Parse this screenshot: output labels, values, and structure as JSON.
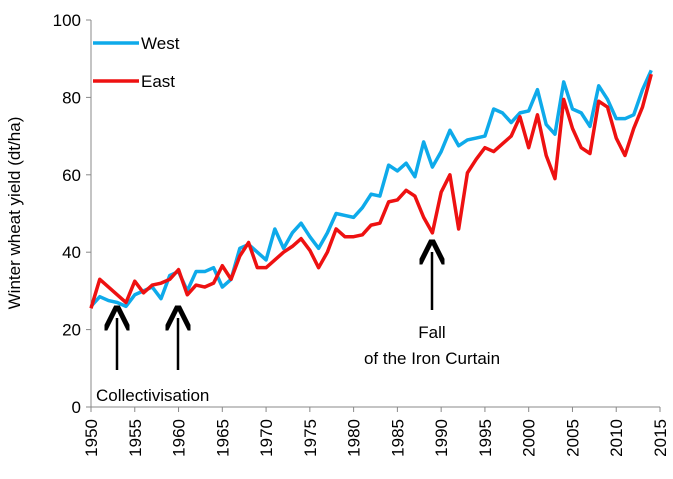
{
  "chart_data": {
    "type": "line",
    "y_label": "Winter wheat yield (dt/ha)",
    "annotations": [
      "Collectivisation",
      "Fall",
      "of the Iron Curtain"
    ],
    "x": [
      1950,
      1951,
      1952,
      1953,
      1954,
      1955,
      1956,
      1957,
      1958,
      1959,
      1960,
      1961,
      1962,
      1963,
      1964,
      1965,
      1966,
      1967,
      1968,
      1969,
      1970,
      1971,
      1972,
      1973,
      1974,
      1975,
      1976,
      1977,
      1978,
      1979,
      1980,
      1981,
      1982,
      1983,
      1984,
      1985,
      1986,
      1987,
      1988,
      1989,
      1990,
      1991,
      1992,
      1993,
      1994,
      1995,
      1996,
      1997,
      1998,
      1999,
      2000,
      2001,
      2002,
      2003,
      2004,
      2005,
      2006,
      2007,
      2008,
      2009,
      2010,
      2011,
      2012,
      2013,
      2014
    ],
    "series": [
      {
        "name": "West",
        "color": "#0eaaea",
        "values": [
          26,
          28.5,
          27.5,
          27,
          26,
          29,
          30,
          31,
          28,
          34,
          35,
          30,
          35,
          35,
          36,
          31,
          33,
          41,
          42,
          40,
          38,
          46,
          41,
          45,
          47.5,
          44,
          41,
          45,
          50,
          49.5,
          49,
          51.5,
          55,
          54.5,
          62.5,
          61,
          63,
          59.5,
          68.5,
          62,
          66,
          71.5,
          67.5,
          69,
          69.5,
          70,
          77,
          76,
          73.5,
          76,
          76.5,
          82,
          73,
          70.5,
          84,
          77,
          76,
          72.5,
          83,
          79.5,
          74.5,
          74.5,
          75.5,
          82,
          87
        ]
      },
      {
        "name": "East",
        "color": "#ee1111",
        "values": [
          25.5,
          33,
          31,
          29,
          27,
          32.5,
          29.5,
          31.5,
          32,
          33,
          35.5,
          29,
          31.5,
          31,
          32,
          36.5,
          33,
          39,
          42.5,
          36,
          36,
          38,
          40,
          41.5,
          43.5,
          40.5,
          36,
          40,
          46,
          44,
          44,
          44.5,
          47,
          47.5,
          53,
          53.5,
          56,
          54.5,
          49,
          45,
          55.5,
          60,
          46,
          60.5,
          64,
          67,
          66,
          68,
          70,
          75,
          67,
          75.5,
          65,
          59,
          79.5,
          72,
          67,
          65.5,
          79,
          77.5,
          69.5,
          65,
          72,
          77.5,
          86
        ]
      }
    ],
    "xlim": [
      1950,
      2015
    ],
    "xticks": [
      1950,
      1955,
      1960,
      1965,
      1970,
      1975,
      1980,
      1985,
      1990,
      1995,
      2000,
      2005,
      2010,
      2015
    ],
    "ylim": [
      0,
      100
    ],
    "yticks": [
      0,
      20,
      40,
      60,
      80,
      100
    ],
    "legend": "upper left"
  }
}
